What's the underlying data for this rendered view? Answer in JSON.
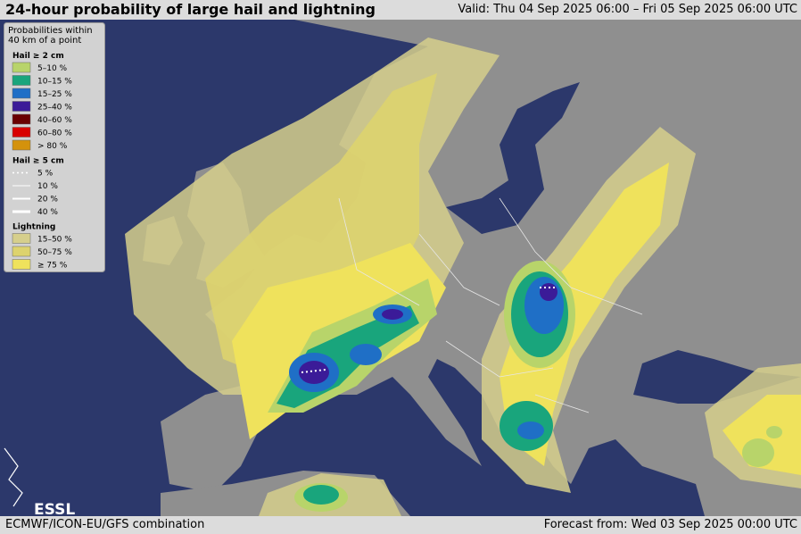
{
  "header": {
    "title": "24-hour probability of large hail and lightning",
    "valid": "Valid: Thu 04 Sep 2025 06:00 – Fri 05 Sep 2025 06:00 UTC"
  },
  "legend": {
    "title": [
      "Probabilities within",
      "40 km of a point"
    ],
    "hail2": {
      "title": "Hail ≥ 2 cm",
      "items": [
        {
          "label": "5–10 %",
          "color": "#b8d46a"
        },
        {
          "label": "10–15 %",
          "color": "#19a57c"
        },
        {
          "label": "15–25 %",
          "color": "#1f6fc6"
        },
        {
          "label": "25–40 %",
          "color": "#3b1b98"
        },
        {
          "label": "40–60 %",
          "color": "#6a0000"
        },
        {
          "label": "60–80 %",
          "color": "#d80000"
        },
        {
          "label": "> 80 %",
          "color": "#d4920c"
        }
      ]
    },
    "hail5": {
      "title": "Hail ≥ 5 cm",
      "items": [
        {
          "label": "5 %"
        },
        {
          "label": "10 %"
        },
        {
          "label": "20 %"
        },
        {
          "label": "40 %"
        }
      ]
    },
    "lightning": {
      "title": "Lightning",
      "items": [
        {
          "label": "15–50 %",
          "color": "#d6cf8c"
        },
        {
          "label": "50–75 %",
          "color": "#ddd36e"
        },
        {
          "label": "≥ 75 %",
          "color": "#efe25c"
        }
      ]
    }
  },
  "logo": "ESSL",
  "footer": {
    "left": "ECMWF/ICON-EU/GFS combination",
    "right": "Forecast from: Wed 03 Sep 2025 00:00 UTC"
  }
}
